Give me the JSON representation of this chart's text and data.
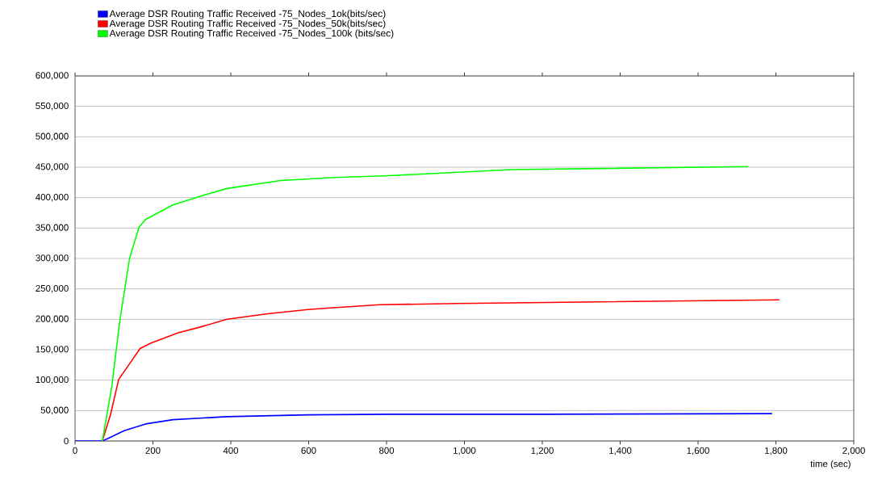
{
  "chart_data": {
    "type": "line",
    "xlabel": "time (sec)",
    "xlim": [
      0,
      2000
    ],
    "ylim": [
      0,
      600000
    ],
    "xticks": [
      0,
      200,
      400,
      600,
      800,
      {
        "value": 1000,
        "label": "1,000"
      },
      {
        "value": 1200,
        "label": "1,200"
      },
      {
        "value": 1400,
        "label": "1,400"
      },
      {
        "value": 1600,
        "label": "1,600"
      },
      {
        "value": 1800,
        "label": "1,800"
      },
      {
        "value": 2000,
        "label": "2,000"
      }
    ],
    "yticks": [
      0,
      {
        "value": 50000,
        "label": "50,000"
      },
      {
        "value": 100000,
        "label": "100,000"
      },
      {
        "value": 150000,
        "label": "150,000"
      },
      {
        "value": 200000,
        "label": "200,000"
      },
      {
        "value": 250000,
        "label": "250,000"
      },
      {
        "value": 300000,
        "label": "300,000"
      },
      {
        "value": 350000,
        "label": "350,000"
      },
      {
        "value": 400000,
        "label": "400,000"
      },
      {
        "value": 450000,
        "label": "450,000"
      },
      {
        "value": 500000,
        "label": "500,000"
      },
      {
        "value": 550000,
        "label": "550,000"
      },
      {
        "value": 600000,
        "label": "600,000"
      }
    ],
    "grid": "y",
    "legend": "top left",
    "marker": "none",
    "line_style": "solid",
    "series": [
      {
        "name": "Average DSR Routing Traffic Received -75_Nodes_1ok(bits/sec)",
        "color": "#0000ff",
        "x": [
          0,
          70,
          84,
          126,
          181,
          251,
          390,
          598,
          806,
          1200,
          1790
        ],
        "values": [
          0,
          0,
          4000,
          17000,
          28000,
          35000,
          40000,
          43000,
          44000,
          44000,
          45000
        ]
      },
      {
        "name": "Average DSR Routing Traffic Received -75_Nodes_50k(bits/sec)",
        "color": "#ff0000",
        "x": [
          70,
          91,
          112,
          140,
          167,
          195,
          265,
          320,
          390,
          494,
          598,
          640,
          783,
          983,
          1809
        ],
        "values": [
          0,
          43000,
          101000,
          127000,
          152000,
          161000,
          178000,
          187000,
          200000,
          209000,
          216000,
          218000,
          224000,
          226000,
          232000
        ]
      },
      {
        "name": "Average DSR Routing Traffic Received -75_Nodes_100k (bits/sec)",
        "color": "#00ff00",
        "x": [
          70,
          94,
          115,
          140,
          164,
          181,
          251,
          320,
          390,
          528,
          667,
          806,
          1120,
          1729
        ],
        "values": [
          0,
          88000,
          198000,
          300000,
          351000,
          364000,
          388000,
          402000,
          415000,
          428000,
          433000,
          436000,
          446000,
          451000
        ]
      }
    ]
  }
}
